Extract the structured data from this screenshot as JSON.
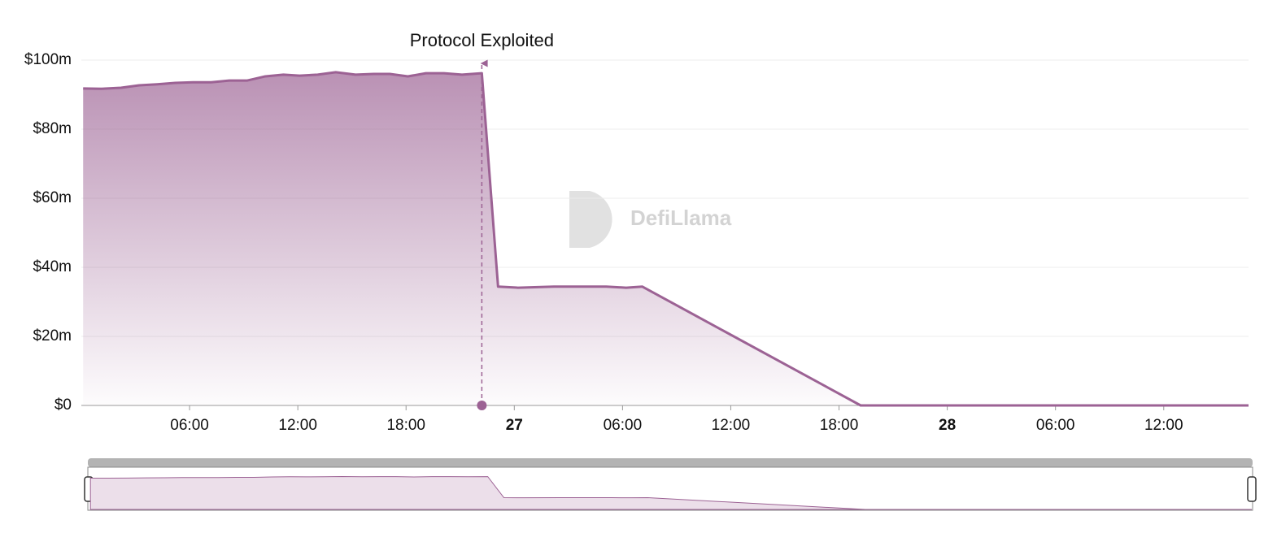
{
  "chart_data": {
    "type": "area",
    "watermark": "DefiLlama",
    "color": "#9c6294",
    "x": [
      0.1,
      1.1,
      2.2,
      3.2,
      4.2,
      5.2,
      6.2,
      7.2,
      8.2,
      9.2,
      10.2,
      11.2,
      12.1,
      13.1,
      14.1,
      15.2,
      16.2,
      17.1,
      18.1,
      19.1,
      20.1,
      21.1,
      22.2,
      23.1,
      24.2,
      26.2,
      29.1,
      30.2,
      31.1,
      43.2,
      64.7
    ],
    "values": [
      91.8,
      91.7,
      92.0,
      92.7,
      93.0,
      93.4,
      93.6,
      93.6,
      94.1,
      94.1,
      95.3,
      95.8,
      95.5,
      95.8,
      96.5,
      95.8,
      96.0,
      96.0,
      95.3,
      96.2,
      96.2,
      95.8,
      96.2,
      34.4,
      34.1,
      34.4,
      34.4,
      34.1,
      34.4,
      0,
      0
    ],
    "xlim": [
      0,
      64.7
    ],
    "xticks": [
      {
        "value": 6,
        "label": "06:00"
      },
      {
        "value": 12,
        "label": "12:00"
      },
      {
        "value": 18,
        "label": "18:00"
      },
      {
        "value": 24,
        "label": "27"
      },
      {
        "value": 30,
        "label": "06:00"
      },
      {
        "value": 36,
        "label": "12:00"
      },
      {
        "value": 42,
        "label": "18:00"
      },
      {
        "value": 48,
        "label": "28"
      },
      {
        "value": 54,
        "label": "06:00"
      },
      {
        "value": 60,
        "label": "12:00"
      }
    ],
    "ylim": [
      0,
      100
    ],
    "yticks": [
      {
        "value": 0,
        "label": "$0"
      },
      {
        "value": 20,
        "label": "$20m"
      },
      {
        "value": 40,
        "label": "$40m"
      },
      {
        "value": 60,
        "label": "$60m"
      },
      {
        "value": 80,
        "label": "$80m"
      },
      {
        "value": 100,
        "label": "$100m"
      }
    ],
    "grid": true,
    "annotation": {
      "text": "Protocol Exploited",
      "x": 22.2
    }
  }
}
